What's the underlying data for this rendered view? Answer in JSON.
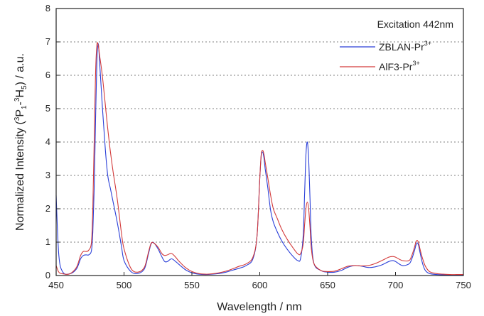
{
  "chart_data": {
    "type": "line",
    "title": "",
    "xlabel": "Wavelength / nm",
    "ylabel": {
      "prefix": "Normalized Intensity (",
      "sup1": "3",
      "part1": "P",
      "sub1": "1",
      "dash": "-",
      "sup2": "3",
      "part2": "H",
      "sub2": "5",
      "suffix": ") / a.u."
    },
    "xlim": [
      450,
      750
    ],
    "ylim": [
      0,
      8
    ],
    "xticks": [
      450,
      500,
      550,
      600,
      650,
      700,
      750
    ],
    "yticks": [
      0,
      1,
      2,
      3,
      4,
      5,
      6,
      7,
      8
    ],
    "grid": "horizontal-dotted",
    "legend_position": "top-right",
    "annotation": "Excitation 442nm",
    "series": [
      {
        "name": "ZBLAN-Pr",
        "name_sup": "3+",
        "color": "#2a3fd8",
        "x": [
          450,
          452,
          455,
          460,
          465,
          468,
          470,
          472,
          474,
          476,
          477,
          478,
          479,
          480,
          481,
          482,
          484,
          486,
          488,
          490,
          492,
          495,
          498,
          500,
          505,
          510,
          515,
          518,
          520,
          522,
          525,
          528,
          530,
          532,
          535,
          538,
          540,
          545,
          550,
          555,
          560,
          565,
          570,
          575,
          580,
          585,
          590,
          595,
          598,
          600,
          601,
          602,
          603,
          604,
          606,
          608,
          610,
          613,
          616,
          620,
          625,
          628,
          630,
          632,
          633,
          634,
          635,
          636,
          637,
          638,
          640,
          645,
          650,
          655,
          660,
          665,
          670,
          675,
          680,
          685,
          690,
          695,
          698,
          700,
          705,
          710,
          712,
          714,
          715,
          716,
          717,
          718,
          720,
          722,
          725,
          730,
          735,
          740,
          745,
          750
        ],
        "values": [
          2.4,
          0.6,
          0.1,
          0.05,
          0.2,
          0.5,
          0.6,
          0.62,
          0.62,
          0.75,
          1.3,
          2.6,
          4.6,
          6.4,
          6.95,
          6.4,
          5.1,
          3.9,
          3.0,
          2.6,
          2.2,
          1.6,
          0.9,
          0.45,
          0.12,
          0.06,
          0.2,
          0.65,
          0.95,
          0.98,
          0.8,
          0.55,
          0.42,
          0.42,
          0.5,
          0.42,
          0.35,
          0.18,
          0.08,
          0.04,
          0.03,
          0.04,
          0.06,
          0.1,
          0.16,
          0.22,
          0.3,
          0.5,
          1.2,
          2.9,
          3.55,
          3.7,
          3.55,
          3.2,
          2.6,
          1.95,
          1.6,
          1.3,
          1.05,
          0.8,
          0.55,
          0.45,
          0.5,
          1.2,
          2.4,
          3.6,
          4.0,
          3.5,
          2.3,
          1.1,
          0.35,
          0.15,
          0.1,
          0.1,
          0.15,
          0.25,
          0.3,
          0.28,
          0.24,
          0.26,
          0.32,
          0.42,
          0.45,
          0.42,
          0.3,
          0.35,
          0.5,
          0.75,
          0.9,
          0.98,
          0.9,
          0.7,
          0.35,
          0.15,
          0.06,
          0.03,
          0.02,
          0.02,
          0.02,
          0.02
        ]
      },
      {
        "name": "AlF3-Pr",
        "name_sup": "3+",
        "color": "#d33a3a",
        "x": [
          450,
          452,
          455,
          460,
          465,
          468,
          470,
          472,
          474,
          476,
          477,
          478,
          479,
          480,
          481,
          482,
          484,
          486,
          488,
          490,
          492,
          495,
          498,
          500,
          505,
          510,
          515,
          518,
          520,
          522,
          525,
          528,
          530,
          532,
          535,
          538,
          540,
          545,
          550,
          555,
          560,
          565,
          570,
          575,
          580,
          585,
          590,
          595,
          598,
          600,
          601,
          602,
          603,
          604,
          606,
          608,
          610,
          613,
          616,
          620,
          625,
          628,
          630,
          632,
          633,
          634,
          635,
          636,
          637,
          638,
          640,
          645,
          650,
          655,
          660,
          665,
          670,
          675,
          680,
          685,
          690,
          695,
          698,
          700,
          705,
          710,
          712,
          714,
          715,
          716,
          717,
          718,
          720,
          722,
          725,
          730,
          735,
          740,
          745,
          750
        ],
        "values": [
          0.3,
          0.1,
          0.05,
          0.05,
          0.25,
          0.6,
          0.72,
          0.72,
          0.76,
          1.0,
          2.0,
          4.0,
          6.0,
          6.9,
          6.9,
          6.6,
          6.0,
          5.2,
          4.4,
          3.7,
          3.1,
          2.3,
          1.3,
          0.8,
          0.22,
          0.1,
          0.25,
          0.7,
          0.97,
          0.97,
          0.85,
          0.65,
          0.6,
          0.62,
          0.66,
          0.55,
          0.45,
          0.25,
          0.12,
          0.06,
          0.04,
          0.05,
          0.08,
          0.13,
          0.2,
          0.28,
          0.35,
          0.55,
          1.2,
          2.9,
          3.6,
          3.75,
          3.65,
          3.4,
          2.9,
          2.4,
          2.0,
          1.7,
          1.4,
          1.1,
          0.8,
          0.65,
          0.65,
          0.95,
          1.5,
          2.0,
          2.2,
          2.0,
          1.45,
          0.8,
          0.35,
          0.15,
          0.12,
          0.13,
          0.2,
          0.28,
          0.3,
          0.29,
          0.3,
          0.36,
          0.45,
          0.55,
          0.57,
          0.55,
          0.45,
          0.45,
          0.6,
          0.85,
          1.0,
          1.05,
          0.98,
          0.8,
          0.5,
          0.28,
          0.12,
          0.06,
          0.04,
          0.03,
          0.03,
          0.03
        ]
      }
    ]
  }
}
